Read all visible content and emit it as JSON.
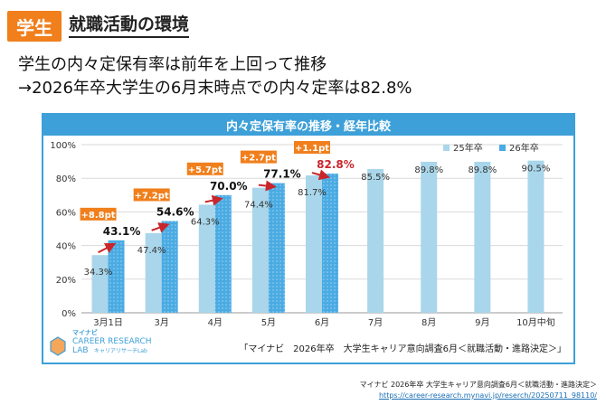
{
  "header": {
    "badge": "学生",
    "title": "就職活動の環境"
  },
  "headline": {
    "line1": "学生の内々定保有率は前年を上回って推移",
    "line2": "→2026年卒大学生の6月末時点での内々定率は82.8%"
  },
  "panel": {
    "title": "内々定保有率の推移・経年比較",
    "logo_brand": "マイナビ",
    "logo_line1": "CAREER RESEARCH",
    "logo_line2": "LAB",
    "logo_sub": "キャリアリサーチLab",
    "source_note": "「マイナビ　2026年卒　大学生キャリア意向調査6月＜就職活動・進路決定＞」"
  },
  "footer": {
    "source": "マイナビ 2026年卒 大学生キャリア意向調査6月＜就職活動・進路決定＞",
    "url": "https://career-research.mynavi.jp/reserch/20250711_98110/"
  },
  "colors": {
    "accent": "#f07f1c",
    "panel_blue": "#3da0d8",
    "bar_25": "#a9d6ea",
    "bar_26": "#4aabe3",
    "arrow": "#c8262b",
    "highlight_text": "#c8262b"
  },
  "chart_data": {
    "type": "bar",
    "categories": [
      "3月1日",
      "3月",
      "4月",
      "5月",
      "6月",
      "7月",
      "8月",
      "9月",
      "10月中旬"
    ],
    "series": [
      {
        "name": "25年卒",
        "values": [
          34.3,
          47.4,
          64.3,
          74.4,
          81.7,
          85.5,
          89.8,
          89.8,
          90.5
        ]
      },
      {
        "name": "26年卒",
        "values": [
          43.1,
          54.6,
          70.0,
          77.1,
          82.8,
          null,
          null,
          null,
          null
        ]
      }
    ],
    "value_labels_25": [
      "34.3%",
      "47.4%",
      "64.3%",
      "74.4%",
      "81.7%",
      "85.5%",
      "89.8%",
      "89.8%",
      "90.5%"
    ],
    "value_labels_26": [
      "43.1%",
      "54.6%",
      "70.0%",
      "77.1%",
      "82.8%",
      "",
      "",
      "",
      ""
    ],
    "diff_labels": [
      "+8.8pt",
      "+7.2pt",
      "+5.7pt",
      "+2.7pt",
      "+1.1pt"
    ],
    "yticks": [
      "0%",
      "20%",
      "40%",
      "60%",
      "80%",
      "100%"
    ],
    "ylim": [
      0,
      100
    ],
    "legend_position": "top-right",
    "grid": true,
    "title": "内々定保有率の推移・経年比較",
    "xlabel": "",
    "ylabel": ""
  }
}
